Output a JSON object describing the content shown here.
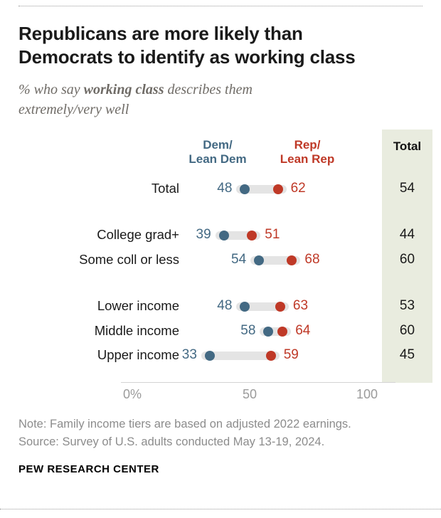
{
  "chart_data": {
    "type": "dumbbell",
    "title": "Republicans are more likely than\nDemocrats to identify as working class",
    "subtitle": {
      "prefix": "% who say ",
      "emphasis": "working class",
      "suffix": " describes them\nextremely/very well"
    },
    "legend": {
      "dem": "Dem/\nLean Dem",
      "rep": "Rep/\nLean Rep",
      "total": "Total"
    },
    "categories": [
      "Total",
      "College grad+",
      "Some coll or less",
      "Lower income",
      "Middle income",
      "Upper income"
    ],
    "series": [
      {
        "name": "Dem/Lean Dem",
        "color": "#436983",
        "values": [
          48,
          39,
          54,
          48,
          58,
          33
        ]
      },
      {
        "name": "Rep/Lean Rep",
        "color": "#bf3927",
        "values": [
          62,
          51,
          68,
          63,
          64,
          59
        ]
      }
    ],
    "totals": [
      54,
      44,
      60,
      53,
      60,
      45
    ],
    "groups": [
      [
        0
      ],
      [
        1,
        2
      ],
      [
        3,
        4,
        5
      ]
    ],
    "axis": {
      "range": [
        0,
        100
      ],
      "ticks": [
        {
          "label": "0%",
          "value": 0
        },
        {
          "label": "50",
          "value": 50
        },
        {
          "label": "100",
          "value": 100
        }
      ]
    },
    "colors": {
      "dem": "#436983",
      "rep": "#bf3927",
      "connector": "#e4e4e4",
      "total_bg": "#e9ecdf"
    }
  },
  "footer": {
    "note": "Note: Family income tiers are based on adjusted 2022 earnings.",
    "source": "Source: Survey of U.S. adults conducted May 13-19, 2024.",
    "brand": "PEW RESEARCH CENTER"
  }
}
